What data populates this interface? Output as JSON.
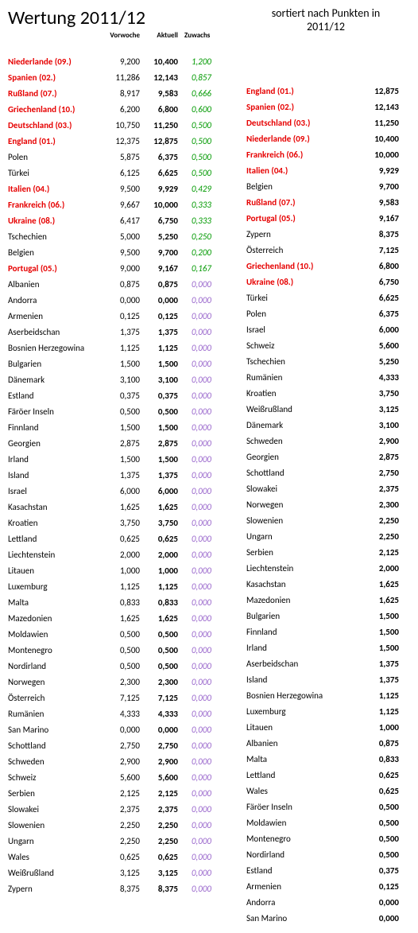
{
  "title_left": "Wertung 2011/12",
  "title_right": "sortiert nach Punkten in 2011/12",
  "headers": {
    "vorwoche": "Vorwoche",
    "aktuell": "Aktuell",
    "zuwachs": "Zuwachs"
  },
  "colors": {
    "highlight": "#e60000",
    "gain_green": "#009900",
    "gain_zero": "#9966cc",
    "text": "#000000",
    "background": "#ffffff"
  },
  "left_rows": [
    {
      "name": "Niederlande (09.)",
      "vor": "9,200",
      "akt": "10,400",
      "zuw": "1,200",
      "hl": true,
      "g": "green"
    },
    {
      "name": "Spanien (02.)",
      "vor": "11,286",
      "akt": "12,143",
      "zuw": "0,857",
      "hl": true,
      "g": "green"
    },
    {
      "name": "Rußland (07.)",
      "vor": "8,917",
      "akt": "9,583",
      "zuw": "0,666",
      "hl": true,
      "g": "green"
    },
    {
      "name": "Griechenland (10.)",
      "vor": "6,200",
      "akt": "6,800",
      "zuw": "0,600",
      "hl": true,
      "g": "green"
    },
    {
      "name": "Deutschland (03.)",
      "vor": "10,750",
      "akt": "11,250",
      "zuw": "0,500",
      "hl": true,
      "g": "green"
    },
    {
      "name": "England (01.)",
      "vor": "12,375",
      "akt": "12,875",
      "zuw": "0,500",
      "hl": true,
      "g": "green"
    },
    {
      "name": "Polen",
      "vor": "5,875",
      "akt": "6,375",
      "zuw": "0,500",
      "hl": false,
      "g": "green"
    },
    {
      "name": "Türkei",
      "vor": "6,125",
      "akt": "6,625",
      "zuw": "0,500",
      "hl": false,
      "g": "green"
    },
    {
      "name": "Italien (04.)",
      "vor": "9,500",
      "akt": "9,929",
      "zuw": "0,429",
      "hl": true,
      "g": "green"
    },
    {
      "name": "Frankreich (06.)",
      "vor": "9,667",
      "akt": "10,000",
      "zuw": "0,333",
      "hl": true,
      "g": "green"
    },
    {
      "name": "Ukraine (08.)",
      "vor": "6,417",
      "akt": "6,750",
      "zuw": "0,333",
      "hl": true,
      "g": "green"
    },
    {
      "name": "Tschechien",
      "vor": "5,000",
      "akt": "5,250",
      "zuw": "0,250",
      "hl": false,
      "g": "green"
    },
    {
      "name": "Belgien",
      "vor": "9,500",
      "akt": "9,700",
      "zuw": "0,200",
      "hl": false,
      "g": "green"
    },
    {
      "name": "Portugal (05.)",
      "vor": "9,000",
      "akt": "9,167",
      "zuw": "0,167",
      "hl": true,
      "g": "green"
    },
    {
      "name": "Albanien",
      "vor": "0,875",
      "akt": "0,875",
      "zuw": "0,000",
      "hl": false,
      "g": "zero"
    },
    {
      "name": "Andorra",
      "vor": "0,000",
      "akt": "0,000",
      "zuw": "0,000",
      "hl": false,
      "g": "zero"
    },
    {
      "name": "Armenien",
      "vor": "0,125",
      "akt": "0,125",
      "zuw": "0,000",
      "hl": false,
      "g": "zero"
    },
    {
      "name": "Aserbeidschan",
      "vor": "1,375",
      "akt": "1,375",
      "zuw": "0,000",
      "hl": false,
      "g": "zero"
    },
    {
      "name": "Bosnien Herzegowina",
      "vor": "1,125",
      "akt": "1,125",
      "zuw": "0,000",
      "hl": false,
      "g": "zero"
    },
    {
      "name": "Bulgarien",
      "vor": "1,500",
      "akt": "1,500",
      "zuw": "0,000",
      "hl": false,
      "g": "zero"
    },
    {
      "name": "Dänemark",
      "vor": "3,100",
      "akt": "3,100",
      "zuw": "0,000",
      "hl": false,
      "g": "zero"
    },
    {
      "name": "Estland",
      "vor": "0,375",
      "akt": "0,375",
      "zuw": "0,000",
      "hl": false,
      "g": "zero"
    },
    {
      "name": "Färöer Inseln",
      "vor": "0,500",
      "akt": "0,500",
      "zuw": "0,000",
      "hl": false,
      "g": "zero"
    },
    {
      "name": "Finnland",
      "vor": "1,500",
      "akt": "1,500",
      "zuw": "0,000",
      "hl": false,
      "g": "zero"
    },
    {
      "name": "Georgien",
      "vor": "2,875",
      "akt": "2,875",
      "zuw": "0,000",
      "hl": false,
      "g": "zero"
    },
    {
      "name": "Irland",
      "vor": "1,500",
      "akt": "1,500",
      "zuw": "0,000",
      "hl": false,
      "g": "zero"
    },
    {
      "name": "Island",
      "vor": "1,375",
      "akt": "1,375",
      "zuw": "0,000",
      "hl": false,
      "g": "zero"
    },
    {
      "name": "Israel",
      "vor": "6,000",
      "akt": "6,000",
      "zuw": "0,000",
      "hl": false,
      "g": "zero"
    },
    {
      "name": "Kasachstan",
      "vor": "1,625",
      "akt": "1,625",
      "zuw": "0,000",
      "hl": false,
      "g": "zero"
    },
    {
      "name": "Kroatien",
      "vor": "3,750",
      "akt": "3,750",
      "zuw": "0,000",
      "hl": false,
      "g": "zero"
    },
    {
      "name": "Lettland",
      "vor": "0,625",
      "akt": "0,625",
      "zuw": "0,000",
      "hl": false,
      "g": "zero"
    },
    {
      "name": "Liechtenstein",
      "vor": "2,000",
      "akt": "2,000",
      "zuw": "0,000",
      "hl": false,
      "g": "zero"
    },
    {
      "name": "Litauen",
      "vor": "1,000",
      "akt": "1,000",
      "zuw": "0,000",
      "hl": false,
      "g": "zero"
    },
    {
      "name": "Luxemburg",
      "vor": "1,125",
      "akt": "1,125",
      "zuw": "0,000",
      "hl": false,
      "g": "zero"
    },
    {
      "name": "Malta",
      "vor": "0,833",
      "akt": "0,833",
      "zuw": "0,000",
      "hl": false,
      "g": "zero"
    },
    {
      "name": "Mazedonien",
      "vor": "1,625",
      "akt": "1,625",
      "zuw": "0,000",
      "hl": false,
      "g": "zero"
    },
    {
      "name": "Moldawien",
      "vor": "0,500",
      "akt": "0,500",
      "zuw": "0,000",
      "hl": false,
      "g": "zero"
    },
    {
      "name": "Montenegro",
      "vor": "0,500",
      "akt": "0,500",
      "zuw": "0,000",
      "hl": false,
      "g": "zero"
    },
    {
      "name": "Nordirland",
      "vor": "0,500",
      "akt": "0,500",
      "zuw": "0,000",
      "hl": false,
      "g": "zero"
    },
    {
      "name": "Norwegen",
      "vor": "2,300",
      "akt": "2,300",
      "zuw": "0,000",
      "hl": false,
      "g": "zero"
    },
    {
      "name": "Österreich",
      "vor": "7,125",
      "akt": "7,125",
      "zuw": "0,000",
      "hl": false,
      "g": "zero"
    },
    {
      "name": "Rumänien",
      "vor": "4,333",
      "akt": "4,333",
      "zuw": "0,000",
      "hl": false,
      "g": "zero"
    },
    {
      "name": "San Marino",
      "vor": "0,000",
      "akt": "0,000",
      "zuw": "0,000",
      "hl": false,
      "g": "zero"
    },
    {
      "name": "Schottland",
      "vor": "2,750",
      "akt": "2,750",
      "zuw": "0,000",
      "hl": false,
      "g": "zero"
    },
    {
      "name": "Schweden",
      "vor": "2,900",
      "akt": "2,900",
      "zuw": "0,000",
      "hl": false,
      "g": "zero"
    },
    {
      "name": "Schweiz",
      "vor": "5,600",
      "akt": "5,600",
      "zuw": "0,000",
      "hl": false,
      "g": "zero"
    },
    {
      "name": "Serbien",
      "vor": "2,125",
      "akt": "2,125",
      "zuw": "0,000",
      "hl": false,
      "g": "zero"
    },
    {
      "name": "Slowakei",
      "vor": "2,375",
      "akt": "2,375",
      "zuw": "0,000",
      "hl": false,
      "g": "zero"
    },
    {
      "name": "Slowenien",
      "vor": "2,250",
      "akt": "2,250",
      "zuw": "0,000",
      "hl": false,
      "g": "zero"
    },
    {
      "name": "Ungarn",
      "vor": "2,250",
      "akt": "2,250",
      "zuw": "0,000",
      "hl": false,
      "g": "zero"
    },
    {
      "name": "Wales",
      "vor": "0,625",
      "akt": "0,625",
      "zuw": "0,000",
      "hl": false,
      "g": "zero"
    },
    {
      "name": "Weißrußland",
      "vor": "3,125",
      "akt": "3,125",
      "zuw": "0,000",
      "hl": false,
      "g": "zero"
    },
    {
      "name": "Zypern",
      "vor": "8,375",
      "akt": "8,375",
      "zuw": "0,000",
      "hl": false,
      "g": "zero"
    }
  ],
  "right_rows": [
    {
      "name": "England (01.)",
      "pts": "12,875",
      "hl": true
    },
    {
      "name": "Spanien (02.)",
      "pts": "12,143",
      "hl": true
    },
    {
      "name": "Deutschland (03.)",
      "pts": "11,250",
      "hl": true
    },
    {
      "name": "Niederlande (09.)",
      "pts": "10,400",
      "hl": true
    },
    {
      "name": "Frankreich (06.)",
      "pts": "10,000",
      "hl": true
    },
    {
      "name": "Italien (04.)",
      "pts": "9,929",
      "hl": true
    },
    {
      "name": "Belgien",
      "pts": "9,700",
      "hl": false
    },
    {
      "name": "Rußland (07.)",
      "pts": "9,583",
      "hl": true
    },
    {
      "name": "Portugal (05.)",
      "pts": "9,167",
      "hl": true
    },
    {
      "name": "Zypern",
      "pts": "8,375",
      "hl": false
    },
    {
      "name": "Österreich",
      "pts": "7,125",
      "hl": false
    },
    {
      "name": "Griechenland (10.)",
      "pts": "6,800",
      "hl": true
    },
    {
      "name": "Ukraine (08.)",
      "pts": "6,750",
      "hl": true
    },
    {
      "name": "Türkei",
      "pts": "6,625",
      "hl": false
    },
    {
      "name": "Polen",
      "pts": "6,375",
      "hl": false
    },
    {
      "name": "Israel",
      "pts": "6,000",
      "hl": false
    },
    {
      "name": "Schweiz",
      "pts": "5,600",
      "hl": false
    },
    {
      "name": "Tschechien",
      "pts": "5,250",
      "hl": false
    },
    {
      "name": "Rumänien",
      "pts": "4,333",
      "hl": false
    },
    {
      "name": "Kroatien",
      "pts": "3,750",
      "hl": false
    },
    {
      "name": "Weißrußland",
      "pts": "3,125",
      "hl": false
    },
    {
      "name": "Dänemark",
      "pts": "3,100",
      "hl": false
    },
    {
      "name": "Schweden",
      "pts": "2,900",
      "hl": false
    },
    {
      "name": "Georgien",
      "pts": "2,875",
      "hl": false
    },
    {
      "name": "Schottland",
      "pts": "2,750",
      "hl": false
    },
    {
      "name": "Slowakei",
      "pts": "2,375",
      "hl": false
    },
    {
      "name": "Norwegen",
      "pts": "2,300",
      "hl": false
    },
    {
      "name": "Slowenien",
      "pts": "2,250",
      "hl": false
    },
    {
      "name": "Ungarn",
      "pts": "2,250",
      "hl": false
    },
    {
      "name": "Serbien",
      "pts": "2,125",
      "hl": false
    },
    {
      "name": "Liechtenstein",
      "pts": "2,000",
      "hl": false
    },
    {
      "name": "Kasachstan",
      "pts": "1,625",
      "hl": false
    },
    {
      "name": "Mazedonien",
      "pts": "1,625",
      "hl": false
    },
    {
      "name": "Bulgarien",
      "pts": "1,500",
      "hl": false
    },
    {
      "name": "Finnland",
      "pts": "1,500",
      "hl": false
    },
    {
      "name": "Irland",
      "pts": "1,500",
      "hl": false
    },
    {
      "name": "Aserbeidschan",
      "pts": "1,375",
      "hl": false
    },
    {
      "name": "Island",
      "pts": "1,375",
      "hl": false
    },
    {
      "name": "Bosnien Herzegowina",
      "pts": "1,125",
      "hl": false
    },
    {
      "name": "Luxemburg",
      "pts": "1,125",
      "hl": false
    },
    {
      "name": "Litauen",
      "pts": "1,000",
      "hl": false
    },
    {
      "name": "Albanien",
      "pts": "0,875",
      "hl": false
    },
    {
      "name": "Malta",
      "pts": "0,833",
      "hl": false
    },
    {
      "name": "Lettland",
      "pts": "0,625",
      "hl": false
    },
    {
      "name": "Wales",
      "pts": "0,625",
      "hl": false
    },
    {
      "name": "Färöer Inseln",
      "pts": "0,500",
      "hl": false
    },
    {
      "name": "Moldawien",
      "pts": "0,500",
      "hl": false
    },
    {
      "name": "Montenegro",
      "pts": "0,500",
      "hl": false
    },
    {
      "name": "Nordirland",
      "pts": "0,500",
      "hl": false
    },
    {
      "name": "Estland",
      "pts": "0,375",
      "hl": false
    },
    {
      "name": "Armenien",
      "pts": "0,125",
      "hl": false
    },
    {
      "name": "Andorra",
      "pts": "0,000",
      "hl": false
    },
    {
      "name": "San Marino",
      "pts": "0,000",
      "hl": false
    }
  ]
}
